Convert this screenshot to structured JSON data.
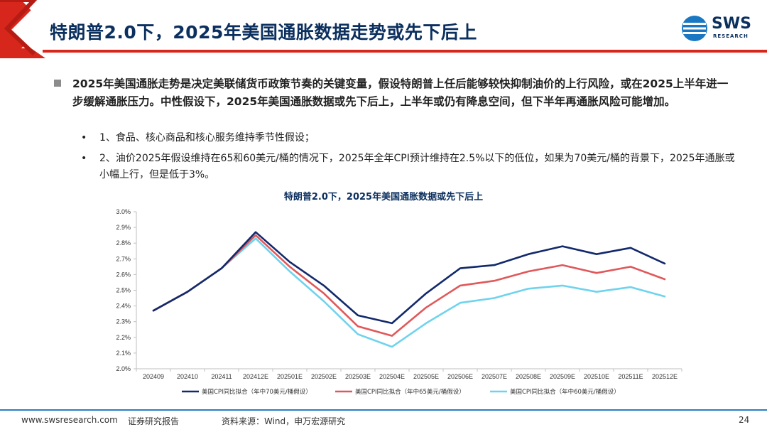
{
  "header": {
    "title": "特朗普2.0下，2025年美国通胀数据走势或先下后上",
    "logo_text": "SWS",
    "logo_sub": "RESEARCH"
  },
  "body": {
    "main_point": "2025年美国通胀走势是决定美联储货币政策节奏的关键变量，假设特朗普上任后能够较快抑制油价的上行风险，或在2025上半年进一步缓解通胀压力。中性假设下，2025年美国通胀数据或先下后上，上半年或仍有降息空间，但下半年再通胀风险可能增加。",
    "bullet_char": "•",
    "sub_points": [
      "1、食品、核心商品和核心服务维持季节性假设；",
      "2、油价2025年假设维持在65和60美元/桶的情况下，2025年全年CPI预计维持在2.5%以下的低位，如果为70美元/桶的背景下，2025年通胀或小幅上行，但是低于3%。"
    ]
  },
  "footer": {
    "website": "www.swsresearch.com",
    "report_type": "证券研究报告",
    "source": "资料来源：Wind，申万宏源研究",
    "page_number": "24"
  },
  "colors": {
    "navy": "#0b2f5e",
    "series_70": "#12296b",
    "series_65": "#e0585a",
    "series_60": "#6fd3ee",
    "accent_red": "#d7261b"
  },
  "chart_data": {
    "type": "line",
    "title": "特朗普2.0下，2025年美国通胀数据或先下后上",
    "categories": [
      "202409",
      "202410",
      "202411",
      "202412E",
      "202501E",
      "202502E",
      "202503E",
      "202504E",
      "202505E",
      "202506E",
      "202507E",
      "202508E",
      "202509E",
      "202510E",
      "202511E",
      "202512E"
    ],
    "ylim": [
      2.0,
      3.0
    ],
    "yticks": [
      "2.0%",
      "2.1%",
      "2.2%",
      "2.3%",
      "2.4%",
      "2.5%",
      "2.6%",
      "2.7%",
      "2.8%",
      "2.9%",
      "3.0%"
    ],
    "grid": false,
    "legend_position": "bottom",
    "series": [
      {
        "name": "美国CPI同比拟合（年中70美元/桶假设）",
        "color": "#12296b",
        "values": [
          2.37,
          2.49,
          2.64,
          2.87,
          2.68,
          2.53,
          2.34,
          2.29,
          2.48,
          2.64,
          2.66,
          2.73,
          2.78,
          2.73,
          2.77,
          2.67
        ]
      },
      {
        "name": "美国CPI同比拟合（年中65美元/桶假设）",
        "color": "#e0585a",
        "values": [
          2.37,
          2.49,
          2.64,
          2.85,
          2.65,
          2.48,
          2.27,
          2.21,
          2.39,
          2.53,
          2.56,
          2.62,
          2.66,
          2.61,
          2.65,
          2.57
        ]
      },
      {
        "name": "美国CPI同比拟合（年中60美元/桶假设）",
        "color": "#6fd3ee",
        "values": [
          2.37,
          2.49,
          2.64,
          2.83,
          2.62,
          2.43,
          2.22,
          2.14,
          2.29,
          2.42,
          2.45,
          2.51,
          2.53,
          2.49,
          2.52,
          2.46
        ]
      }
    ]
  }
}
